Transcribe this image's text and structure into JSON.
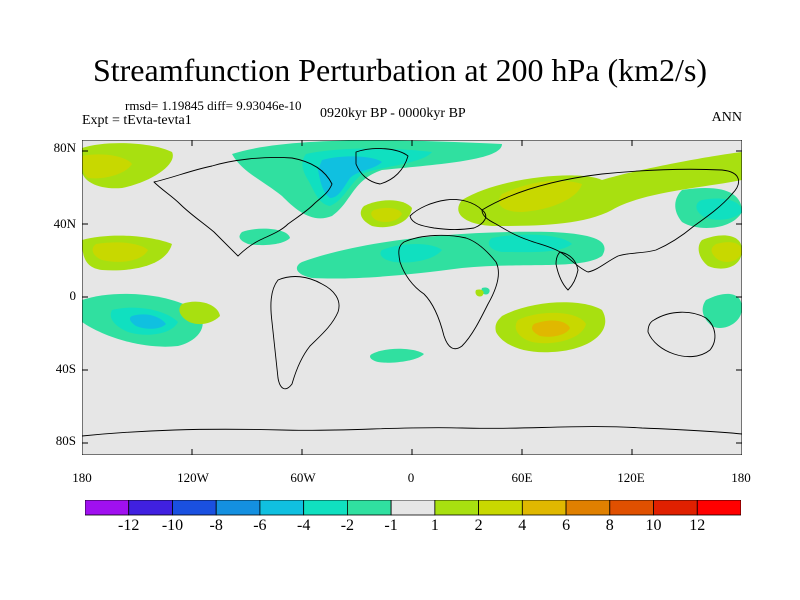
{
  "header": {
    "title": "Streamfunction Perturbation at 200 hPa (km2/s)",
    "stats": "rmsd= 1.19845 diff= 9.93046e-10",
    "experiment": "Expt = tEvta-tevta1",
    "period": "0920kyr BP - 0000kyr BP",
    "season": "ANN"
  },
  "axes": {
    "lat_labels": [
      "80N",
      "40N",
      "0",
      "40S",
      "80S"
    ],
    "lon_labels": [
      "180",
      "120W",
      "60W",
      "0",
      "60E",
      "120E",
      "180"
    ]
  },
  "colorbar": {
    "labels": [
      "-12",
      "-10",
      "-8",
      "-6",
      "-4",
      "-2",
      "-1",
      "1",
      "2",
      "4",
      "6",
      "8",
      "10",
      "12"
    ],
    "colors": [
      "#a010f0",
      "#4020e0",
      "#1a50e0",
      "#1490e0",
      "#10c0e0",
      "#10e0c0",
      "#30e0a0",
      "#e6e6e6",
      "#a8e010",
      "#c8d800",
      "#e0b800",
      "#e08000",
      "#e05000",
      "#e02000",
      "#ff0000"
    ]
  },
  "colors": {
    "background": "#e6e6e6",
    "pos_light": "#a8e010",
    "pos_mid": "#c8d800",
    "pos_strong": "#e0b800",
    "neg_light": "#30e0a0",
    "neg_mid": "#10e0c0",
    "neg_strong": "#10c0e0",
    "neg_deep": "#1490e0"
  }
}
